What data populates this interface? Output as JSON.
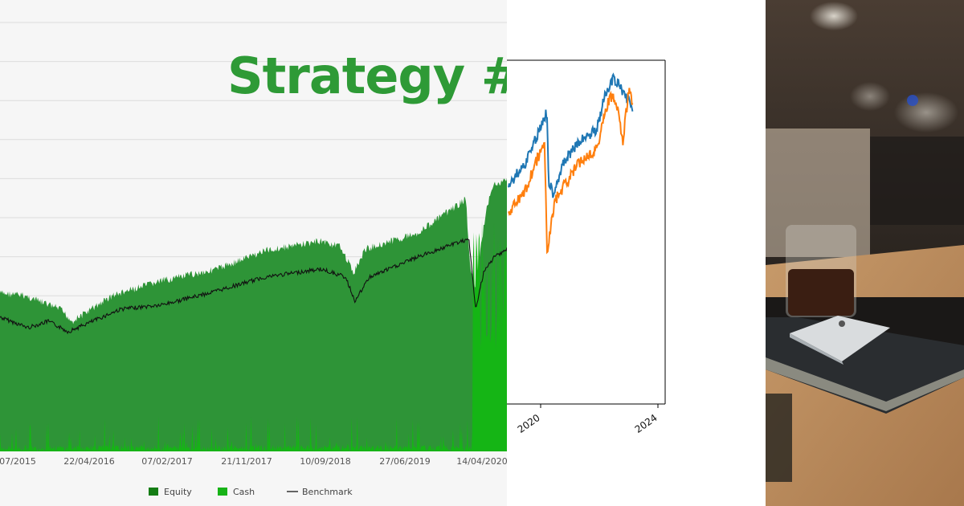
{
  "headline": "Strategy #",
  "left_chart": {
    "x_ticks": [
      "07/2015",
      "22/04/2016",
      "07/02/2017",
      "21/11/2017",
      "10/09/2018",
      "27/06/2019",
      "14/04/2020"
    ],
    "legend": [
      {
        "label": "Equity",
        "color": "#147d14"
      },
      {
        "label": "Cash",
        "color": "#17b317"
      },
      {
        "label": "Benchmark",
        "color": "#333333"
      }
    ]
  },
  "mid_chart": {
    "x_ticks": [
      "2020",
      "2024"
    ]
  },
  "colors": {
    "equity_fill": "#2e9437",
    "cash_fill": "#15b515",
    "benchmark_line": "#111111",
    "series_blue": "#1f77b4",
    "series_orange": "#ff7f0e",
    "headline": "#2e9a36"
  },
  "chart_data": [
    {
      "type": "area",
      "x": [
        "2015-07",
        "2016-04-22",
        "2017-02-07",
        "2017-11-21",
        "2018-09-10",
        "2019-06-27",
        "2020-04-14"
      ],
      "series": [
        {
          "name": "Equity",
          "values": [
            1.15,
            1.0,
            1.18,
            1.3,
            1.5,
            1.6,
            2.0
          ]
        },
        {
          "name": "Cash",
          "values": [
            0.05,
            0.04,
            0.05,
            0.04,
            0.05,
            0.06,
            0.7
          ]
        },
        {
          "name": "Benchmark",
          "values": [
            0.95,
            0.9,
            1.02,
            1.12,
            1.2,
            1.4,
            1.2
          ]
        }
      ],
      "grid": true,
      "legend_position": "bottom"
    },
    {
      "type": "line",
      "x_ticks": [
        "2020",
        "2024"
      ],
      "series": [
        {
          "values": [
            0.4,
            0.55,
            0.2,
            0.48,
            0.85,
            0.75
          ]
        },
        {
          "values": [
            0.3,
            0.45,
            0.05,
            0.4,
            0.8,
            0.7
          ]
        }
      ]
    }
  ]
}
